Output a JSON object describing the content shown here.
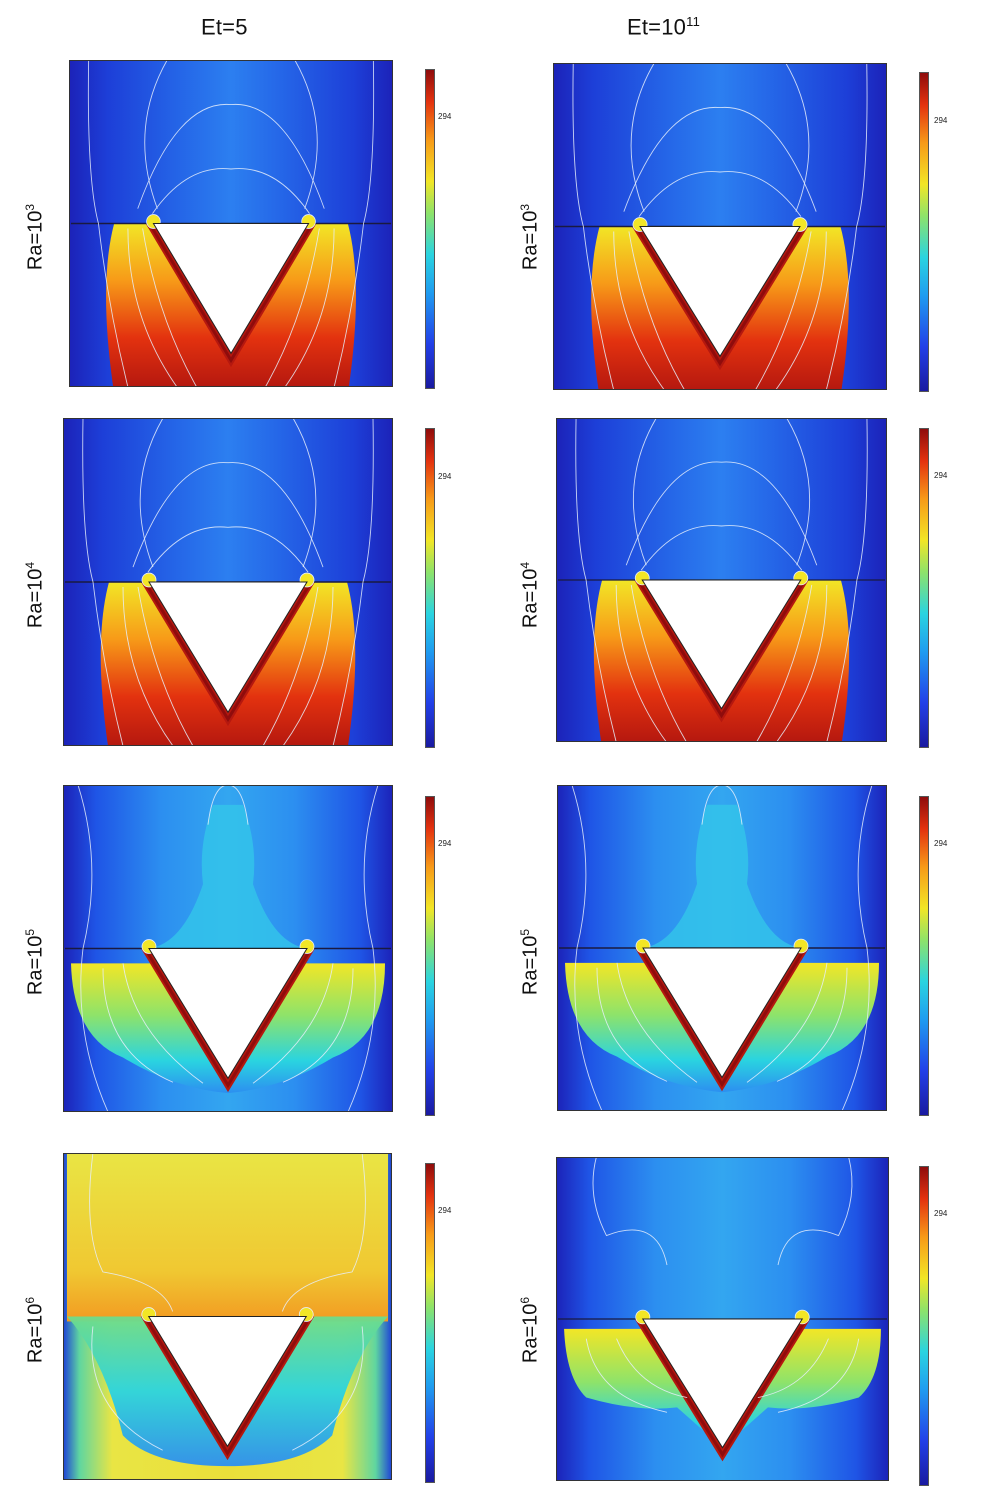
{
  "columns": [
    {
      "base": "Et=5",
      "sup": ""
    },
    {
      "base": "Et=10",
      "sup": "11"
    }
  ],
  "rows": [
    {
      "base": "Ra=10",
      "sup": "3"
    },
    {
      "base": "Ra=10",
      "sup": "4"
    },
    {
      "base": "Ra=10",
      "sup": "5"
    },
    {
      "base": "Ra=10",
      "sup": "6"
    }
  ],
  "colorbar": {
    "tick_label": "294",
    "colormap": "jet"
  },
  "colors": {
    "cold": "#1a1aa0",
    "mid": "#2ad4e0",
    "warm": "#f2e626",
    "hot": "#8f0c0c",
    "isotherm": "#e6eefc"
  }
}
